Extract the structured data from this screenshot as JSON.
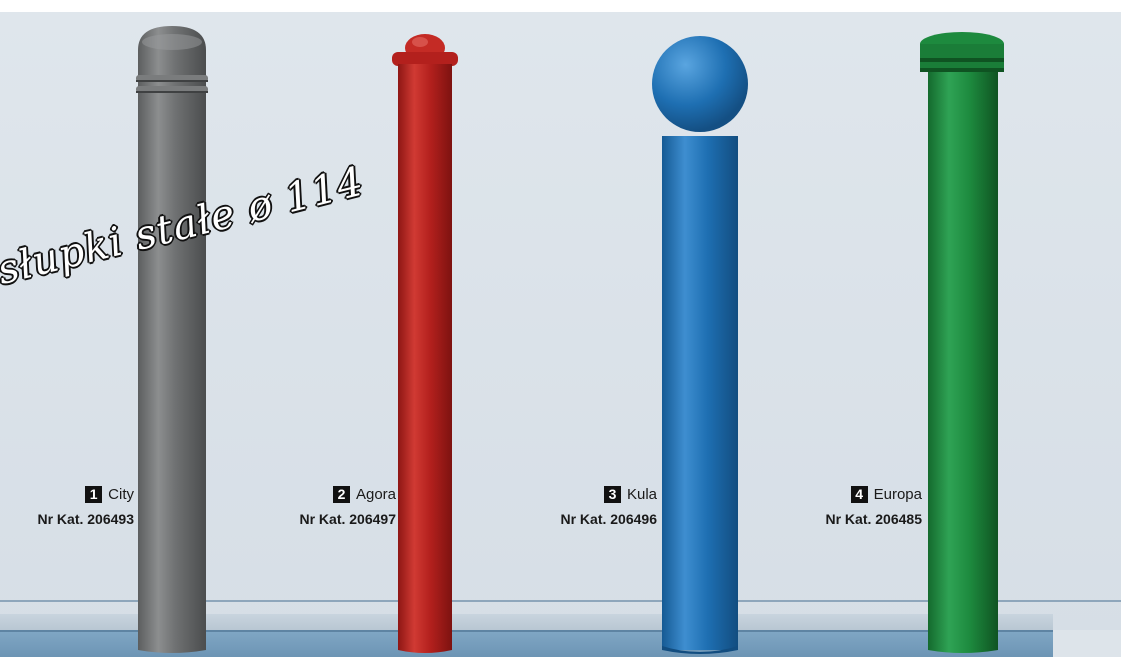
{
  "title": "słupki stałe ø 114",
  "products": [
    {
      "number": "1",
      "name": "City",
      "catalog": "Nr Kat. 206493",
      "color": "#6e7071"
    },
    {
      "number": "2",
      "name": "Agora",
      "catalog": "Nr Kat. 206497",
      "color": "#b3201d"
    },
    {
      "number": "3",
      "name": "Kula",
      "catalog": "Nr Kat. 206496",
      "color": "#1e6fb2"
    },
    {
      "number": "4",
      "name": "Europa",
      "catalog": "Nr Kat. 206485",
      "color": "#1d8a3e"
    }
  ]
}
